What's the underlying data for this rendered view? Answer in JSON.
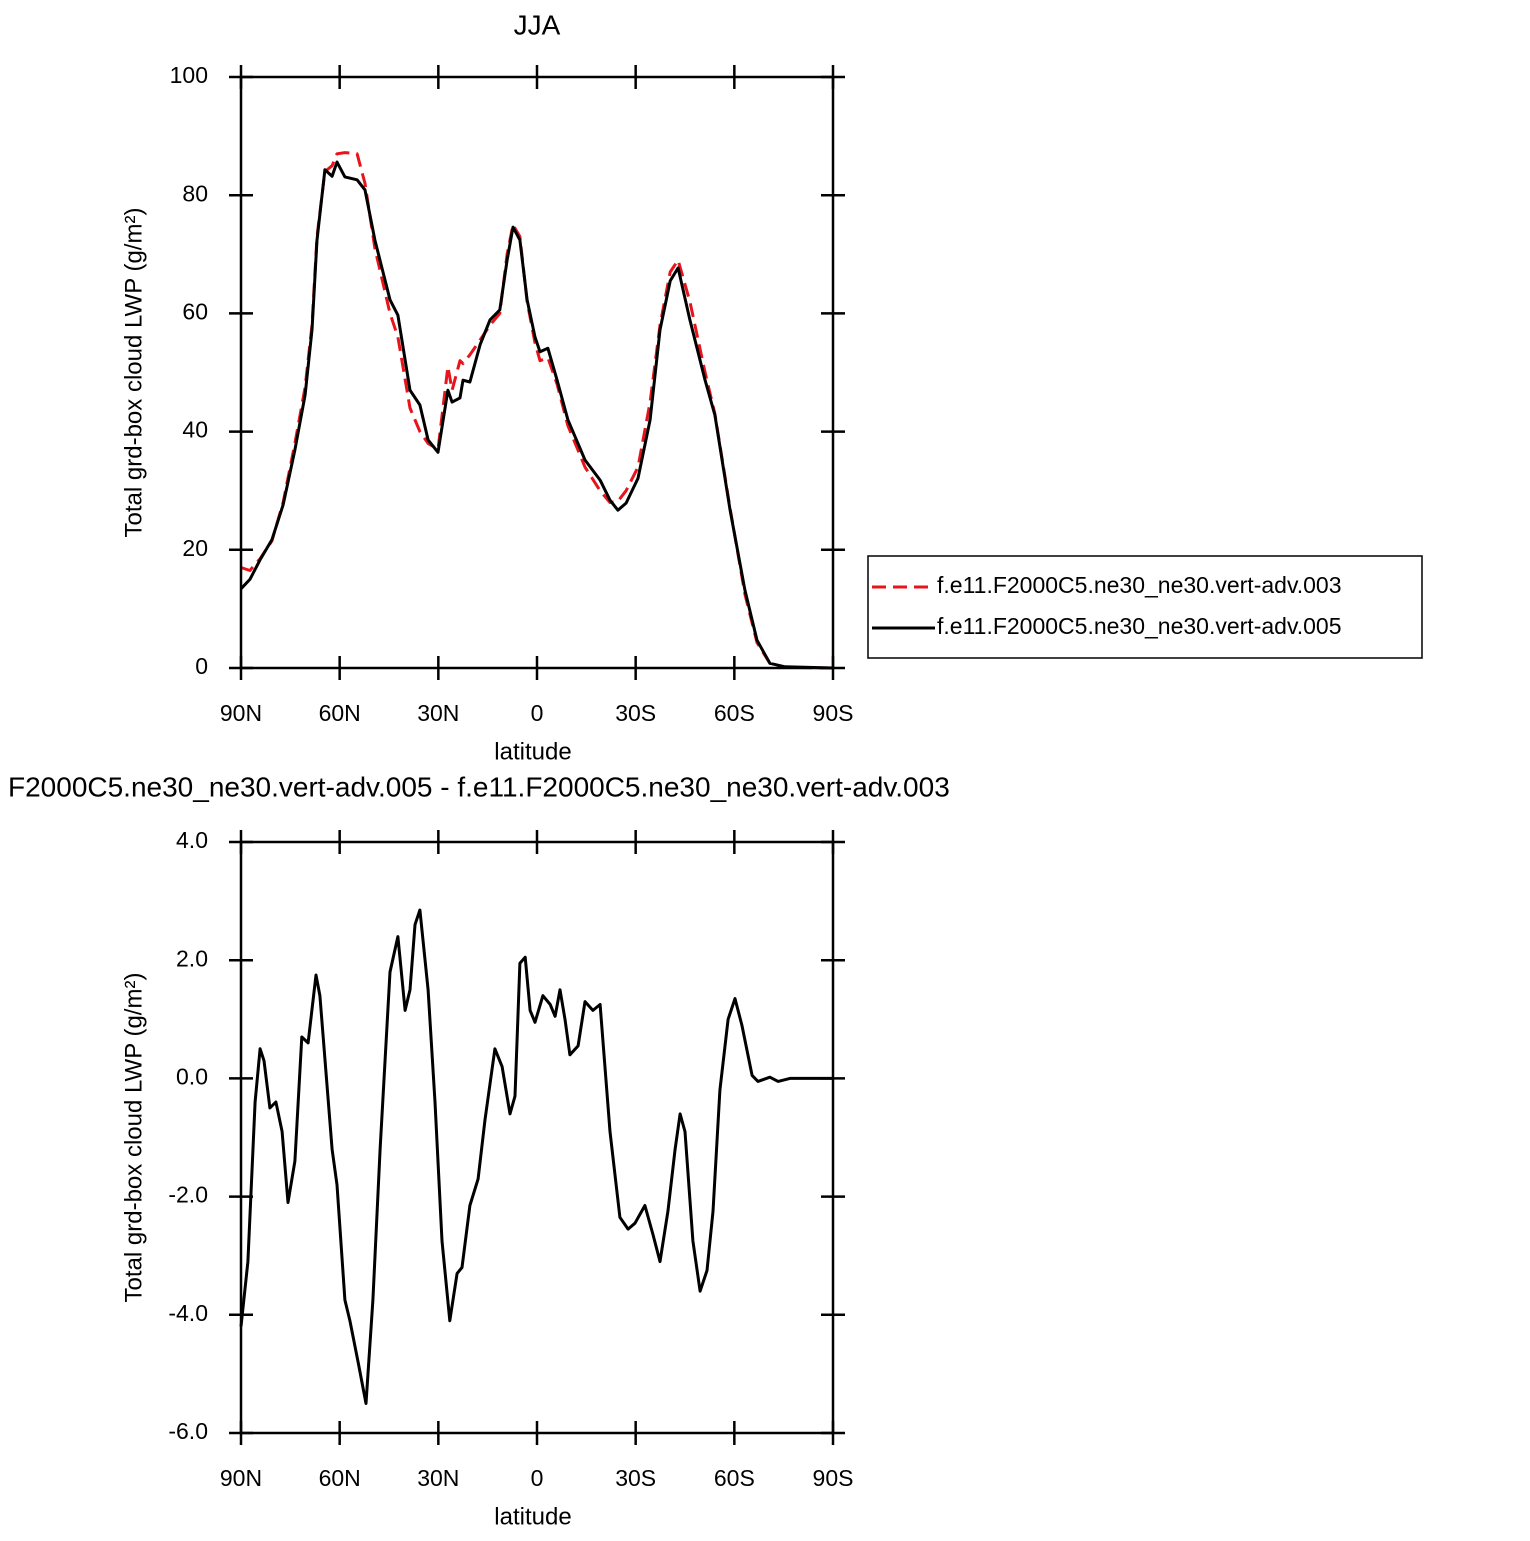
{
  "chart_data": [
    {
      "type": "line",
      "title": "JJA",
      "xlabel": "latitude",
      "ylabel": "Total grd-box cloud LWP (g/m²)",
      "xlim": [
        90,
        -90
      ],
      "ylim": [
        0,
        100
      ],
      "xticks": [
        {
          "value": 90,
          "label": "90N"
        },
        {
          "value": 60,
          "label": "60N"
        },
        {
          "value": 30,
          "label": "30N"
        },
        0,
        {
          "value": -30,
          "label": "30S"
        },
        {
          "value": -60,
          "label": "60S"
        },
        {
          "value": -90,
          "label": "90S"
        }
      ],
      "yticks": [
        0,
        20,
        40,
        60,
        80,
        100
      ],
      "legend": "right",
      "x": [
        90,
        87.3,
        84.2,
        80.6,
        77.2,
        73.6,
        70.5,
        68.4,
        66.9,
        64.5,
        62.3,
        60.8,
        58.4,
        54.7,
        52.3,
        49.3,
        44.7,
        42.3,
        38.6,
        35.6,
        33.1,
        30.1,
        27.1,
        25.8,
        23.4,
        22.5,
        20.4,
        17.3,
        14.3,
        11.3,
        9.1,
        7.3,
        5.2,
        3.0,
        0.6,
        -0.9,
        -3.3,
        -6.1,
        -9.4,
        -14.6,
        -19.2,
        -22.2,
        -24.6,
        -27.1,
        -30.7,
        -34.4,
        -37.4,
        -40.5,
        -42.9,
        -46.5,
        -51.1,
        -54.1,
        -58.7,
        -63.2,
        -66.9,
        -70.8,
        -75.4,
        -90
      ],
      "series": [
        {
          "name": "f.e11.F2000C5.ne30_ne30.vert-adv.003",
          "color": "#e8141b",
          "dash": "dashed",
          "values": [
            17,
            16.5,
            18.5,
            21.5,
            28,
            38,
            47.5,
            58,
            73,
            84,
            85,
            87,
            87.2,
            87,
            82,
            71,
            60,
            56,
            44,
            40,
            38,
            37,
            51,
            47,
            52,
            51.5,
            53,
            55.5,
            58,
            60,
            70,
            75,
            73,
            62,
            55,
            52,
            52.5,
            48,
            41,
            34,
            30,
            28,
            28.2,
            30,
            34,
            45,
            58,
            67,
            69,
            62,
            50,
            43,
            27,
            12.5,
            4.3,
            0.8,
            0.1,
            0
          ]
        },
        {
          "name": "f.e11.F2000C5.ne30_ne30.vert-adv.005",
          "color": "#000000",
          "dash": "solid",
          "values": [
            13.4,
            15,
            18.3,
            21.7,
            27.6,
            36.9,
            46.2,
            57.2,
            72.4,
            84.3,
            83.2,
            85.6,
            83.1,
            82.6,
            80.9,
            72.4,
            62.3,
            59.7,
            47,
            44.5,
            38.6,
            36.5,
            47,
            45,
            45.7,
            48.7,
            48.4,
            54.7,
            58.9,
            60.6,
            69,
            74.6,
            72.4,
            62.3,
            56,
            53.5,
            54.1,
            48.7,
            42,
            35.2,
            31.8,
            28.4,
            26.7,
            27.9,
            32.1,
            42,
            57.2,
            65.5,
            67.7,
            58.9,
            48.7,
            42.8,
            26.7,
            13.2,
            4.7,
            0.8,
            0.2,
            0
          ]
        }
      ]
    },
    {
      "type": "line",
      "title": "F2000C5.ne30_ne30.vert-adv.005 - f.e11.F2000C5.ne30_ne30.vert-adv.003",
      "xlabel": "latitude",
      "ylabel": "Total grd-box cloud LWP (g/m²)",
      "xlim": [
        90,
        -90
      ],
      "ylim": [
        -6,
        4
      ],
      "xticks": [
        {
          "value": 90,
          "label": "90N"
        },
        {
          "value": 60,
          "label": "60N"
        },
        {
          "value": 30,
          "label": "30N"
        },
        0,
        {
          "value": -30,
          "label": "30S"
        },
        {
          "value": -60,
          "label": "60S"
        },
        {
          "value": -90,
          "label": "90S"
        }
      ],
      "yticks": [
        {
          "value": -6,
          "label": "-6.0"
        },
        {
          "value": -4,
          "label": "-4.0"
        },
        {
          "value": -2,
          "label": "-2.0"
        },
        {
          "value": 0,
          "label": "0.0"
        },
        {
          "value": 2,
          "label": "2.0"
        },
        {
          "value": 4,
          "label": "4.0"
        }
      ],
      "x": [
        90,
        87.9,
        85.7,
        84.2,
        83,
        81.2,
        79.4,
        77.5,
        75.7,
        73.6,
        71.5,
        69.6,
        67.2,
        66,
        62.3,
        60.8,
        58.4,
        56.9,
        54.4,
        52,
        49.9,
        47.7,
        44.7,
        42.3,
        40.1,
        38.6,
        37.1,
        35.6,
        33.1,
        31,
        28.9,
        26.5,
        24.3,
        22.8,
        20.4,
        17.9,
        15.8,
        12.8,
        10.6,
        8.2,
        6.7,
        5.2,
        3.6,
        2.1,
        0.6,
        -1.8,
        -4,
        -5.5,
        -7,
        -8.5,
        -10,
        -12.5,
        -14.6,
        -17,
        -19.2,
        -22.2,
        -25.2,
        -27.7,
        -29.8,
        -32.8,
        -35.3,
        -37.4,
        -39.8,
        -42,
        -43.5,
        -45,
        -47.4,
        -49.6,
        -51.7,
        -53.5,
        -55.6,
        -58.1,
        -60.2,
        -62.3,
        -65.4,
        -67.2,
        -70.8,
        -73.3,
        -76.9,
        -90
      ],
      "series": [
        {
          "color": "#000000",
          "dash": "solid",
          "values": [
            -4.2,
            -3.1,
            -0.4,
            0.5,
            0.3,
            -0.5,
            -0.4,
            -0.9,
            -2.1,
            -1.4,
            0.7,
            0.6,
            1.75,
            1.4,
            -1.2,
            -1.8,
            -3.75,
            -4.1,
            -4.8,
            -5.5,
            -3.75,
            -1.2,
            1.8,
            2.4,
            1.15,
            1.5,
            2.6,
            2.85,
            1.5,
            -0.4,
            -2.75,
            -4.1,
            -3.3,
            -3.2,
            -2.15,
            -1.7,
            -0.7,
            0.5,
            0.2,
            -0.6,
            -0.3,
            1.95,
            2.05,
            1.15,
            0.95,
            1.4,
            1.25,
            1.05,
            1.5,
            1.0,
            0.4,
            0.55,
            1.3,
            1.15,
            1.25,
            -0.9,
            -2.35,
            -2.55,
            -2.45,
            -2.15,
            -2.65,
            -3.1,
            -2.25,
            -1.2,
            -0.6,
            -0.9,
            -2.75,
            -3.6,
            -3.25,
            -2.25,
            -0.2,
            1.0,
            1.35,
            0.9,
            0.05,
            -0.05,
            0.02,
            -0.05,
            0,
            0
          ]
        }
      ]
    }
  ]
}
